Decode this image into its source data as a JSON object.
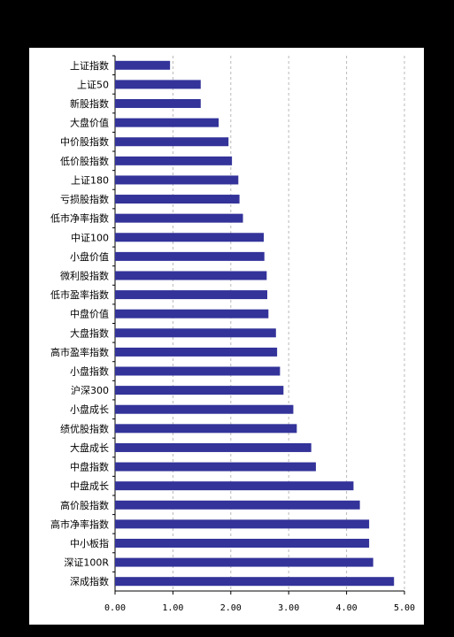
{
  "chart_data": {
    "type": "bar",
    "orientation": "horizontal",
    "categories": [
      "上证指数",
      "上证50",
      "新股指数",
      "大盘价值",
      "中价股指数",
      "低价股指数",
      "上证180",
      "亏损股指数",
      "低市净率指数",
      "中证100",
      "小盘价值",
      "微利股指数",
      "低市盈率指数",
      "中盘价值",
      "大盘指数",
      "高市盈率指数",
      "小盘指数",
      "沪深300",
      "小盘成长",
      "绩优股指数",
      "大盘成长",
      "中盘指数",
      "中盘成长",
      "高价股指数",
      "高市净率指数",
      "中小板指",
      "深证100R",
      "深成指数"
    ],
    "values": [
      0.95,
      1.48,
      1.48,
      1.79,
      1.96,
      2.02,
      2.13,
      2.15,
      2.21,
      2.57,
      2.58,
      2.62,
      2.63,
      2.65,
      2.78,
      2.8,
      2.85,
      2.91,
      3.08,
      3.14,
      3.39,
      3.47,
      4.12,
      4.23,
      4.39,
      4.39,
      4.46,
      4.82
    ],
    "xlim": [
      0,
      5
    ],
    "xticks": [
      "0.00",
      "1.00",
      "2.00",
      "3.00",
      "4.00",
      "5.00"
    ],
    "grid": true,
    "bar_color": "#33339a",
    "title": "",
    "xlabel": "",
    "ylabel": ""
  }
}
